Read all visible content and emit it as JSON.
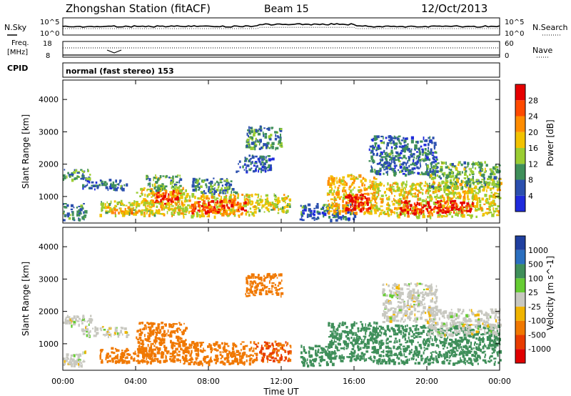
{
  "header": {
    "station": "Zhongshan Station (fitACF)",
    "beam": "Beam 15",
    "date": "12/Oct/2013"
  },
  "noise_panel": {
    "left_label": "N.Sky",
    "right_label": "N.Search",
    "left_ticks": [
      "10^5",
      "10^0"
    ],
    "right_ticks": [
      "10^5",
      "10^0"
    ]
  },
  "freq_panel": {
    "left_label_1": "Freq.",
    "left_label_2": "[MHz]",
    "right_label": "Nave",
    "left_ticks": [
      "18",
      "8"
    ],
    "right_ticks": [
      "60",
      "0"
    ]
  },
  "cpid": {
    "label": "CPID",
    "text": "normal (fast stereo) 153"
  },
  "colors": {
    "power_scale": [
      "#1f2bdc",
      "#2b4fae",
      "#3f8f5a",
      "#9acd32",
      "#f2c200",
      "#ff8c00",
      "#ff4a00",
      "#e60000"
    ],
    "velocity_scale": [
      "#1f3f9f",
      "#2b6fbf",
      "#3f8f5a",
      "#66cc33",
      "#c8c8c0",
      "#f0b400",
      "#f07800",
      "#e83c00",
      "#e00000"
    ]
  },
  "chart_data": [
    {
      "type": "heatmap",
      "name": "power",
      "xlabel": "Time UT",
      "ylabel": "Slant Range [km]",
      "xlim": [
        0,
        24
      ],
      "ylim": [
        180,
        4600
      ],
      "x_ticks": [
        "00:00",
        "04:00",
        "08:00",
        "12:00",
        "16:00",
        "20:00",
        "00:00"
      ],
      "y_ticks": [
        1000,
        2000,
        3000,
        4000
      ],
      "colorbar_label": "Power [dB]",
      "colorbar_ticks": [
        "4",
        "8",
        "12",
        "16",
        "20",
        "24",
        "28"
      ],
      "colorbar_range": [
        0,
        30
      ],
      "regions": [
        {
          "x": [
            0.0,
            1.5
          ],
          "y": [
            1550,
            1900
          ],
          "value": 10
        },
        {
          "x": [
            0.0,
            1.2
          ],
          "y": [
            300,
            800
          ],
          "value": 8
        },
        {
          "x": [
            1.0,
            3.5
          ],
          "y": [
            1250,
            1550
          ],
          "value": 7
        },
        {
          "x": [
            2.0,
            5.0
          ],
          "y": [
            450,
            900
          ],
          "value": 14
        },
        {
          "x": [
            2.4,
            4.0
          ],
          "y": [
            500,
            700
          ],
          "value": 22
        },
        {
          "x": [
            4.0,
            6.8
          ],
          "y": [
            450,
            1300
          ],
          "value": 16
        },
        {
          "x": [
            5.0,
            6.5
          ],
          "y": [
            800,
            1200
          ],
          "value": 26
        },
        {
          "x": [
            4.5,
            6.5
          ],
          "y": [
            1200,
            1700
          ],
          "value": 11
        },
        {
          "x": [
            6.5,
            10.5
          ],
          "y": [
            400,
            1100
          ],
          "value": 17
        },
        {
          "x": [
            7.0,
            10.0
          ],
          "y": [
            550,
            900
          ],
          "value": 25
        },
        {
          "x": [
            7.0,
            9.5
          ],
          "y": [
            1100,
            1600
          ],
          "value": 9
        },
        {
          "x": [
            10.0,
            12.0
          ],
          "y": [
            2500,
            3200
          ],
          "value": 9
        },
        {
          "x": [
            9.5,
            11.5
          ],
          "y": [
            1800,
            2300
          ],
          "value": 6
        },
        {
          "x": [
            10.5,
            12.5
          ],
          "y": [
            500,
            1100
          ],
          "value": 15
        },
        {
          "x": [
            13.0,
            16.0
          ],
          "y": [
            300,
            800
          ],
          "value": 7
        },
        {
          "x": [
            14.5,
            17.2
          ],
          "y": [
            500,
            1700
          ],
          "value": 18
        },
        {
          "x": [
            15.5,
            16.8
          ],
          "y": [
            600,
            1100
          ],
          "value": 28
        },
        {
          "x": [
            17.0,
            24.0
          ],
          "y": [
            400,
            1500
          ],
          "value": 16
        },
        {
          "x": [
            18.5,
            22.5
          ],
          "y": [
            500,
            900
          ],
          "value": 28
        },
        {
          "x": [
            16.8,
            20.5
          ],
          "y": [
            1700,
            2900
          ],
          "value": 7
        },
        {
          "x": [
            20.0,
            24.0
          ],
          "y": [
            1300,
            2100
          ],
          "value": 11
        }
      ]
    },
    {
      "type": "heatmap",
      "name": "velocity",
      "xlabel": "Time UT",
      "ylabel": "Slant Range [km]",
      "xlim": [
        0,
        24
      ],
      "ylim": [
        180,
        4600
      ],
      "x_ticks": [
        "00:00",
        "04:00",
        "08:00",
        "12:00",
        "16:00",
        "20:00",
        "00:00"
      ],
      "y_ticks": [
        1000,
        2000,
        3000,
        4000
      ],
      "colorbar_label": "Velocity [m s^-1]",
      "colorbar_ticks": [
        "1000",
        "500",
        "100",
        "25",
        "-25",
        "-100",
        "-500",
        "-1000"
      ],
      "colorbar_range": [
        -1000,
        1000
      ],
      "regions": [
        {
          "x": [
            0.0,
            1.5
          ],
          "y": [
            1550,
            1900
          ],
          "value": 0
        },
        {
          "x": [
            0.0,
            1.2
          ],
          "y": [
            300,
            800
          ],
          "value": 0
        },
        {
          "x": [
            1.0,
            3.5
          ],
          "y": [
            1250,
            1550
          ],
          "value": 0
        },
        {
          "x": [
            2.0,
            5.0
          ],
          "y": [
            450,
            900
          ],
          "value": -150
        },
        {
          "x": [
            4.0,
            6.8
          ],
          "y": [
            450,
            1700
          ],
          "value": -200
        },
        {
          "x": [
            6.5,
            10.5
          ],
          "y": [
            400,
            1100
          ],
          "value": -300
        },
        {
          "x": [
            10.0,
            12.0
          ],
          "y": [
            2500,
            3200
          ],
          "value": -150
        },
        {
          "x": [
            10.5,
            12.5
          ],
          "y": [
            500,
            1100
          ],
          "value": -500
        },
        {
          "x": [
            13.0,
            14.8
          ],
          "y": [
            350,
            1000
          ],
          "value": 200
        },
        {
          "x": [
            14.5,
            17.2
          ],
          "y": [
            500,
            1700
          ],
          "value": 150
        },
        {
          "x": [
            17.0,
            24.0
          ],
          "y": [
            400,
            1600
          ],
          "value": 250
        },
        {
          "x": [
            17.5,
            20.5
          ],
          "y": [
            1700,
            2900
          ],
          "value": 0
        },
        {
          "x": [
            20.0,
            24.0
          ],
          "y": [
            1300,
            2100
          ],
          "value": 0
        }
      ]
    }
  ]
}
